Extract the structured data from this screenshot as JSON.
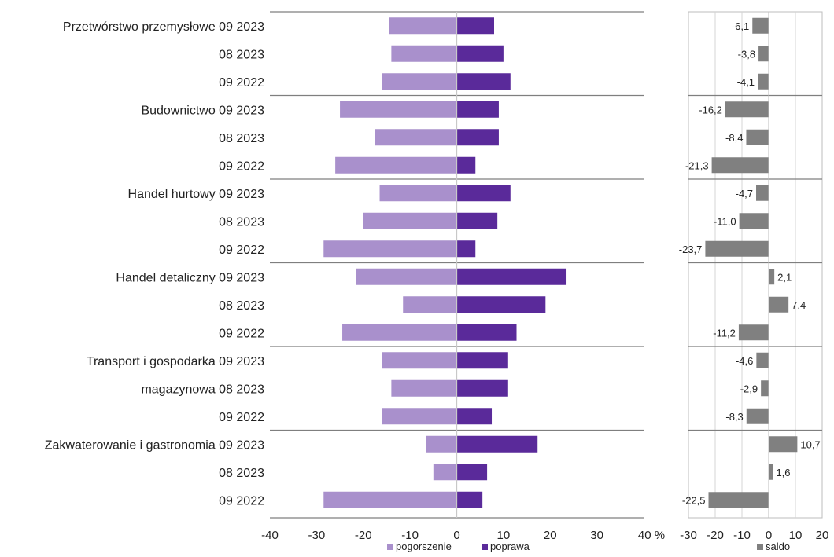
{
  "chart_data": [
    {
      "type": "bar",
      "orientation": "horizontal",
      "layout": "diverging",
      "xlim": [
        -40,
        40
      ],
      "xticks": [
        "-40",
        "-30",
        "-20",
        "-10",
        "0",
        "10",
        "20",
        "30",
        "40 %"
      ],
      "legend_position": "bottom",
      "row_labels": [
        "Przetwórstwo przemysłowe 09 2023",
        "08 2023",
        "09 2022",
        "Budownictwo 09 2023",
        "08 2023",
        "09 2022",
        "Handel hurtowy 09 2023",
        "08 2023",
        "09 2022",
        "Handel detaliczny 09 2023",
        "08 2023",
        "09 2022",
        "Transport i gospodarka 09 2023",
        "magazynowa 08 2023",
        "09 2022",
        "Zakwaterowanie i gastronomia 09 2023",
        "08 2023",
        "09 2022"
      ],
      "series": [
        {
          "name": "pogorszenie",
          "color": "#a990cc",
          "values": [
            -14.5,
            -14,
            -16,
            -25,
            -17.5,
            -26,
            -16.5,
            -20,
            -28.5,
            -21.5,
            -11.5,
            -24.5,
            -16,
            -14,
            -16,
            -6.5,
            -5,
            -28.5
          ]
        },
        {
          "name": "poprawa",
          "color": "#5a2a9a",
          "values": [
            8,
            10,
            11.5,
            9,
            9,
            4,
            11.5,
            8.7,
            4,
            23.5,
            19,
            12.8,
            11,
            11,
            7.5,
            17.3,
            6.5,
            5.5
          ]
        }
      ]
    },
    {
      "type": "bar",
      "orientation": "horizontal",
      "xlim": [
        -30,
        20
      ],
      "xticks": [
        "-30",
        "-20",
        "-10",
        "0",
        "10",
        "20"
      ],
      "legend_position": "bottom",
      "series": [
        {
          "name": "saldo",
          "color": "#808080",
          "values": [
            -6.1,
            -3.8,
            -4.1,
            -16.2,
            -8.4,
            -21.3,
            -4.7,
            -11.0,
            -23.7,
            2.1,
            7.4,
            -11.2,
            -4.6,
            -2.9,
            -8.3,
            10.7,
            1.6,
            -22.5
          ],
          "labels": [
            "-6,1",
            "-3,8",
            "-4,1",
            "-16,2",
            "-8,4",
            "-21,3",
            "-4,7",
            "-11,0",
            "-23,7",
            "2,1",
            "7,4",
            "-11,2",
            "-4,6",
            "-2,9",
            "-8,3",
            "10,7",
            "1,6",
            "-22,5"
          ]
        }
      ]
    }
  ]
}
